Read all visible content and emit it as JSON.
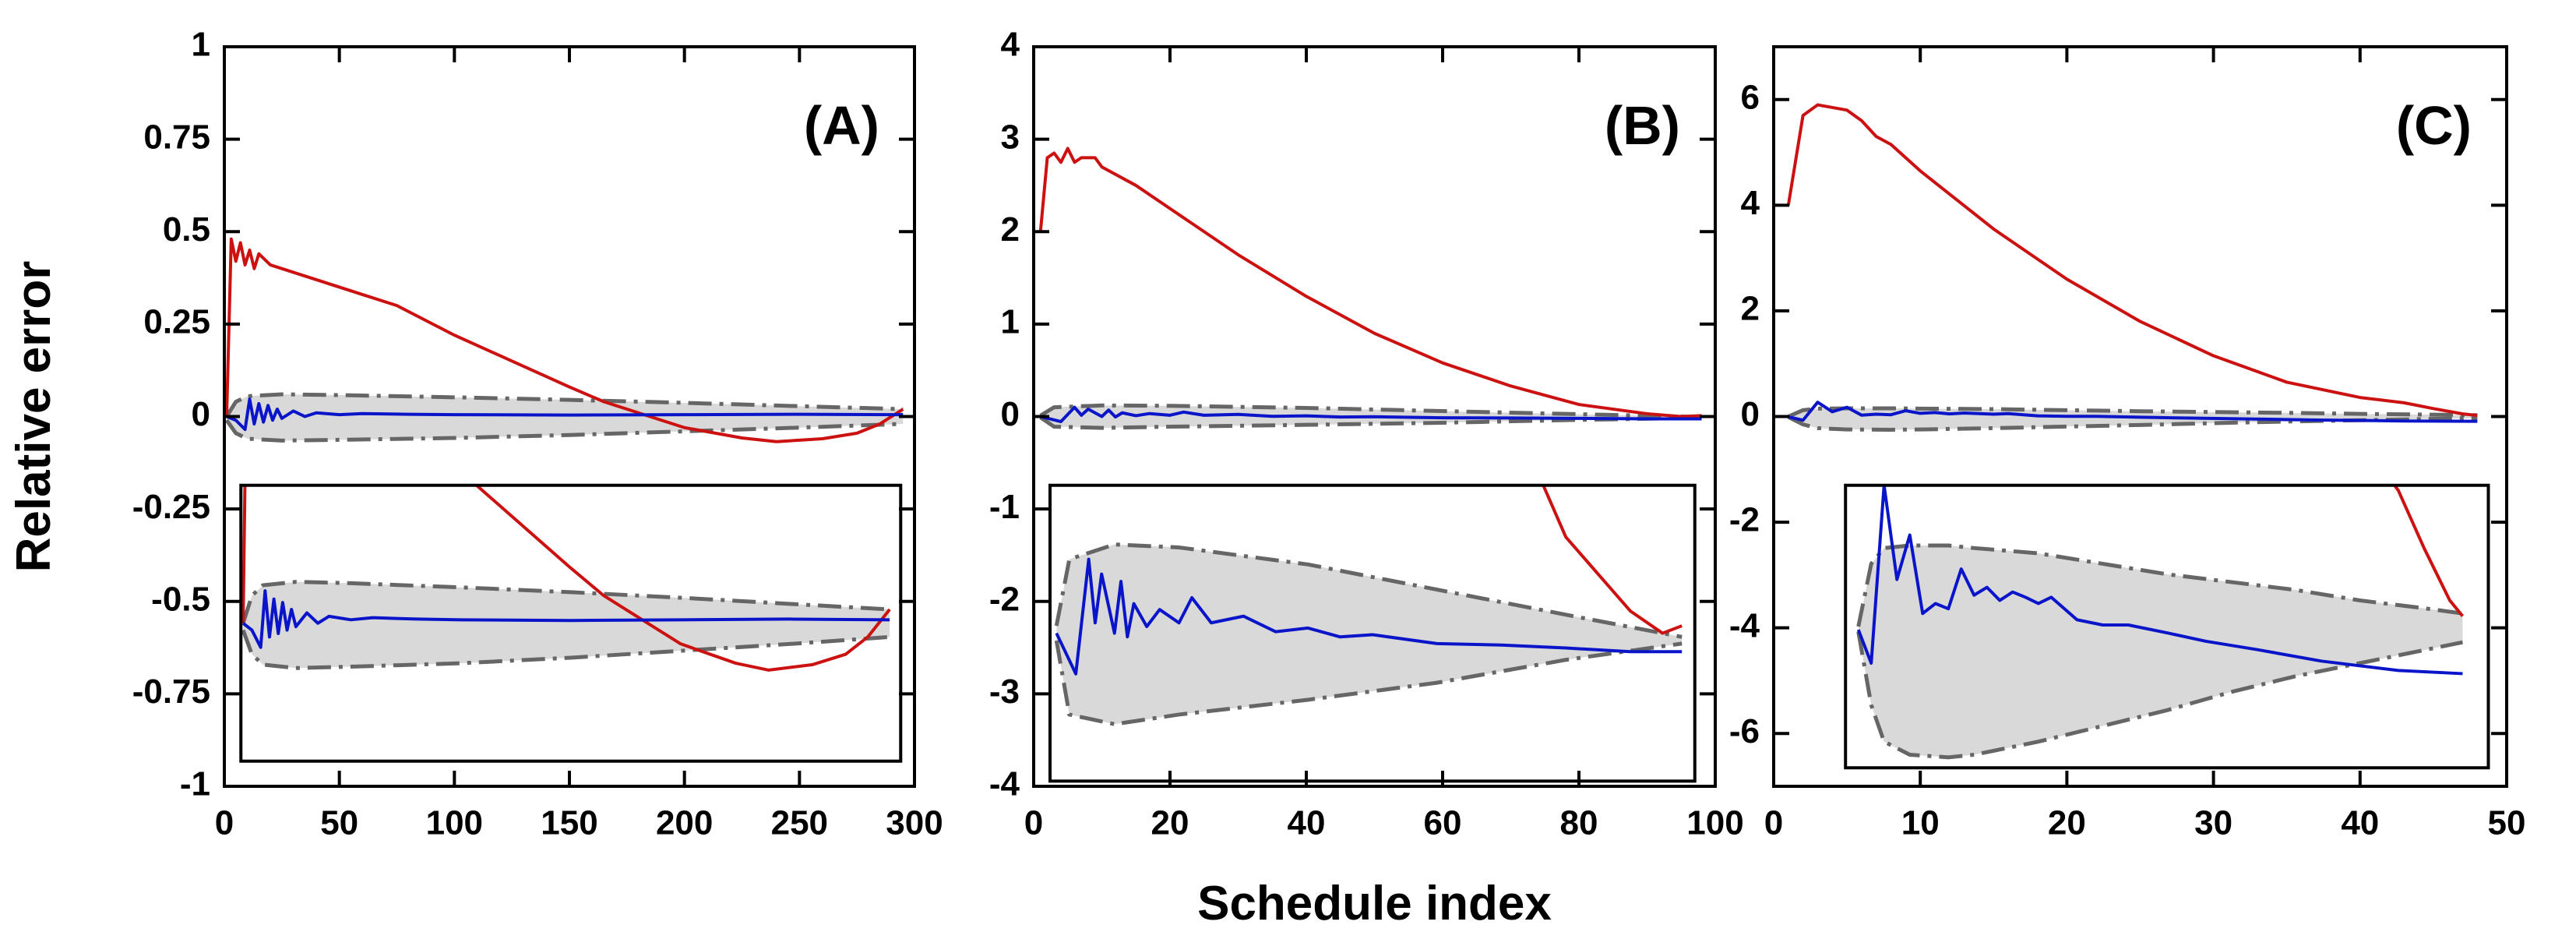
{
  "chart_data": [
    {
      "type": "line",
      "label": "(A)",
      "ylabel": "Relative error",
      "xlim": [
        0,
        300
      ],
      "ylim": [
        -1,
        1
      ],
      "xticks": [
        0,
        50,
        100,
        150,
        200,
        250,
        300
      ],
      "yticks": [
        1,
        0.75,
        0.5,
        0.25,
        0,
        -0.25,
        -0.5,
        -0.75,
        -1
      ],
      "series": [
        {
          "color": "#cc1111",
          "x": [
            1,
            3,
            5,
            7,
            9,
            11,
            13,
            15,
            20,
            25,
            30,
            40,
            50,
            60,
            75,
            100,
            125,
            150,
            165,
            175,
            200,
            225,
            240,
            260,
            275,
            285,
            295
          ],
          "values": [
            0,
            0.48,
            0.42,
            0.47,
            0.41,
            0.45,
            0.4,
            0.44,
            0.41,
            0.4,
            0.39,
            0.37,
            0.35,
            0.33,
            0.3,
            0.22,
            0.15,
            0.08,
            0.04,
            0.02,
            -0.03,
            -0.058,
            -0.068,
            -0.06,
            -0.045,
            -0.02,
            0.02
          ]
        },
        {
          "color": "#0a14c8",
          "x": [
            1,
            5,
            9,
            11,
            13,
            15,
            17,
            19,
            21,
            23,
            25,
            30,
            35,
            40,
            50,
            60,
            80,
            100,
            150,
            200,
            250,
            295
          ],
          "values": [
            0,
            -0.01,
            -0.035,
            0.047,
            -0.02,
            0.035,
            -0.015,
            0.03,
            -0.01,
            0.02,
            -0.005,
            0.015,
            0,
            0.01,
            0.005,
            0.008,
            0.006,
            0.005,
            0.004,
            0.005,
            0.006,
            0.005
          ]
        }
      ],
      "band": {
        "color": "#d9d9d9",
        "edge_color": "#666666",
        "x": [
          1,
          5,
          10,
          25,
          50,
          100,
          150,
          200,
          250,
          295
        ],
        "upper": [
          0,
          0.04,
          0.055,
          0.06,
          0.058,
          0.052,
          0.045,
          0.037,
          0.028,
          0.02
        ],
        "lower": [
          -0.01,
          -0.045,
          -0.06,
          -0.065,
          -0.063,
          -0.058,
          -0.05,
          -0.04,
          -0.03,
          -0.02
        ]
      },
      "inset": {
        "ylim": [
          -0.2,
          0.2
        ]
      }
    },
    {
      "type": "line",
      "label": "(B)",
      "xlabel": "Schedule index",
      "xlim": [
        0,
        100
      ],
      "ylim": [
        -4,
        4
      ],
      "xticks": [
        0,
        20,
        40,
        60,
        80,
        100
      ],
      "yticks": [
        4,
        3,
        2,
        1,
        0,
        -1,
        -2,
        -3,
        -4
      ],
      "series": [
        {
          "color": "#cc1111",
          "x": [
            1,
            2,
            3,
            4,
            5,
            6,
            7,
            8,
            9,
            10,
            15,
            20,
            30,
            40,
            50,
            60,
            70,
            80,
            90,
            95,
            98
          ],
          "values": [
            2,
            2.8,
            2.85,
            2.75,
            2.9,
            2.75,
            2.8,
            2.8,
            2.8,
            2.7,
            2.5,
            2.25,
            1.75,
            1.3,
            0.9,
            0.58,
            0.33,
            0.13,
            0.03,
            0,
            0.01
          ]
        },
        {
          "color": "#0a14c8",
          "x": [
            1,
            4,
            6,
            7,
            8,
            10,
            11,
            12,
            13,
            15,
            17,
            20,
            22,
            25,
            30,
            35,
            40,
            45,
            50,
            60,
            70,
            80,
            90,
            98
          ],
          "values": [
            0,
            -0.055,
            0.1,
            0.014,
            0.08,
            0,
            0.07,
            -0.005,
            0.04,
            0.009,
            0.032,
            0.014,
            0.048,
            0.014,
            0.023,
            0.002,
            0.007,
            -0.005,
            -0.002,
            -0.014,
            -0.016,
            -0.02,
            -0.025,
            -0.025
          ]
        }
      ],
      "band": {
        "color": "#d9d9d9",
        "edge_color": "#666666",
        "x": [
          1,
          3,
          10,
          20,
          40,
          60,
          80,
          98
        ],
        "upper": [
          0.01,
          0.1,
          0.12,
          0.116,
          0.093,
          0.059,
          0.025,
          -0.005
        ],
        "lower": [
          -0.01,
          -0.11,
          -0.123,
          -0.11,
          -0.09,
          -0.067,
          -0.036,
          -0.014
        ]
      },
      "inset": {
        "ylim": [
          -0.2,
          0.2
        ]
      }
    },
    {
      "type": "line",
      "label": "(C)",
      "xlim": [
        0,
        50
      ],
      "ylim": [
        -7,
        7
      ],
      "xticks": [
        0,
        10,
        20,
        30,
        40,
        50
      ],
      "yticks": [
        6,
        4,
        2,
        0,
        -2,
        -4,
        -6
      ],
      "series": [
        {
          "color": "#cc1111",
          "x": [
            1,
            2,
            3,
            4,
            5,
            6,
            7,
            8,
            10,
            15,
            20,
            25,
            30,
            35,
            40,
            43,
            45,
            47,
            48
          ],
          "values": [
            4,
            5.7,
            5.9,
            5.85,
            5.8,
            5.6,
            5.3,
            5.15,
            4.65,
            3.55,
            2.6,
            1.8,
            1.15,
            0.65,
            0.36,
            0.26,
            0.15,
            0.05,
            0.02
          ]
        },
        {
          "color": "#0a14c8",
          "x": [
            1,
            2,
            3,
            4,
            5,
            6,
            7,
            8,
            9,
            10,
            11,
            12,
            13,
            14,
            15,
            16,
            18,
            20,
            22,
            25,
            28,
            32,
            37,
            43,
            48
          ],
          "values": [
            -0.006,
            -0.07,
            0.27,
            0.09,
            0.175,
            0.025,
            0.044,
            0.034,
            0.11,
            0.06,
            0.075,
            0.05,
            0.066,
            0.056,
            0.044,
            0.056,
            0.013,
            0.003,
            0.003,
            -0.012,
            -0.028,
            -0.044,
            -0.066,
            -0.084,
            -0.09
          ]
        }
      ],
      "band": {
        "color": "#d9d9d9",
        "edge_color": "#666666",
        "x": [
          1,
          2,
          3,
          5,
          8,
          10,
          15,
          20,
          25,
          30,
          35,
          40,
          45,
          48
        ],
        "upper": [
          0,
          0.12,
          0.15,
          0.155,
          0.155,
          0.15,
          0.14,
          0.12,
          0.1,
          0.085,
          0.07,
          0.05,
          0.035,
          0.025
        ],
        "lower": [
          -0.01,
          -0.15,
          -0.22,
          -0.245,
          -0.25,
          -0.245,
          -0.22,
          -0.19,
          -0.16,
          -0.125,
          -0.095,
          -0.07,
          -0.045,
          -0.03
        ]
      },
      "inset": {
        "ylim": [
          -0.27,
          0.27
        ]
      }
    }
  ]
}
